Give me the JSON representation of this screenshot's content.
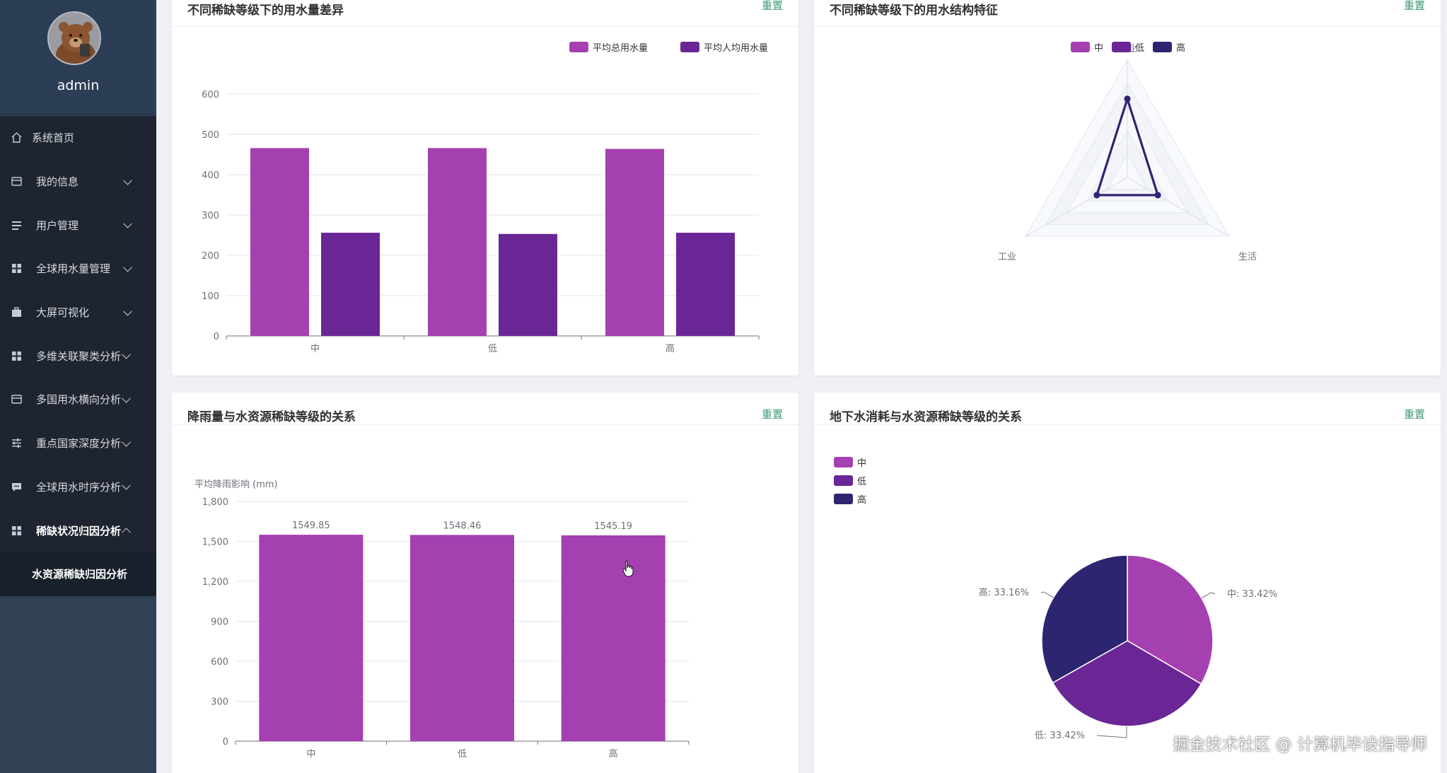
{
  "user": {
    "name": "admin"
  },
  "menu": [
    {
      "label": "系统首页",
      "icon": "home-icon",
      "arrow": false
    },
    {
      "label": "我的信息",
      "icon": "wallet-icon",
      "arrow": true
    },
    {
      "label": "用户管理",
      "icon": "list-icon",
      "arrow": true
    },
    {
      "label": "全球用水量管理",
      "icon": "grid-icon",
      "arrow": true
    },
    {
      "label": "大屏可视化",
      "icon": "briefcase-icon",
      "arrow": true
    },
    {
      "label": "多维关联聚类分析",
      "icon": "grid-icon",
      "arrow": true
    },
    {
      "label": "多国用水横向分析",
      "icon": "wallet-icon",
      "arrow": true
    },
    {
      "label": "重点国家深度分析",
      "icon": "sliders-icon",
      "arrow": true
    },
    {
      "label": "全球用水时序分析",
      "icon": "comment-icon",
      "arrow": true
    },
    {
      "label": "稀缺状况归因分析",
      "icon": "grid-icon",
      "arrow": true,
      "open": true
    }
  ],
  "submenu": {
    "label": "水资源稀缺归因分析"
  },
  "reset_label": "重置",
  "colors": {
    "mid": "#a540b0",
    "low": "#6b2696",
    "high": "#2c2570"
  },
  "cards": {
    "c1": {
      "title": "不同稀缺等级下的用水量差异",
      "chart_data": {
        "type": "bar",
        "categories": [
          "中",
          "低",
          "高"
        ],
        "series": [
          {
            "name": "平均总用水量",
            "values": [
              466,
              466,
              464
            ]
          },
          {
            "name": "平均人均用水量",
            "values": [
              256,
              253,
              256
            ]
          }
        ],
        "ylim": [
          0,
          600
        ],
        "yticks": [
          0,
          100,
          200,
          300,
          400,
          500,
          600
        ],
        "legend": "top-center"
      }
    },
    "c2": {
      "title": "不同稀缺等级下的用水结构特征",
      "chart_data": {
        "type": "radar",
        "indicators": [
          "农业",
          "工业",
          "生活"
        ],
        "max": 100,
        "series": [
          {
            "name": "中",
            "values": [
              67,
              30,
              30
            ]
          },
          {
            "name": "低",
            "values": [
              67,
              30,
              30
            ]
          },
          {
            "name": "高",
            "values": [
              67,
              30,
              30
            ]
          }
        ],
        "legend": "top-center"
      }
    },
    "c3": {
      "title": "降雨量与水资源稀缺等级的关系",
      "chart_data": {
        "type": "bar",
        "categories": [
          "中",
          "低",
          "高"
        ],
        "values": [
          1549.85,
          1548.46,
          1545.19
        ],
        "labels": [
          "1549.85",
          "1548.46",
          "1545.19"
        ],
        "ylabel": "平均降雨影响 (mm)",
        "ylim": [
          0,
          1800
        ],
        "yticks": [
          0,
          300,
          600,
          900,
          1200,
          1500,
          1800
        ],
        "ytick_labels": [
          "0",
          "300",
          "600",
          "900",
          "1,200",
          "1,500",
          "1,800"
        ]
      }
    },
    "c4": {
      "title": "地下水消耗与水资源稀缺等级的关系",
      "chart_data": {
        "type": "pie",
        "slices": [
          {
            "name": "中",
            "value": 33.42,
            "label": "中: 33.42%"
          },
          {
            "name": "低",
            "value": 33.42,
            "label": "低: 33.42%"
          },
          {
            "name": "高",
            "value": 33.16,
            "label": "高: 33.16%"
          }
        ],
        "legend": "top-left"
      }
    }
  },
  "watermark": "掘金技术社区 @ 计算机毕设指导师"
}
